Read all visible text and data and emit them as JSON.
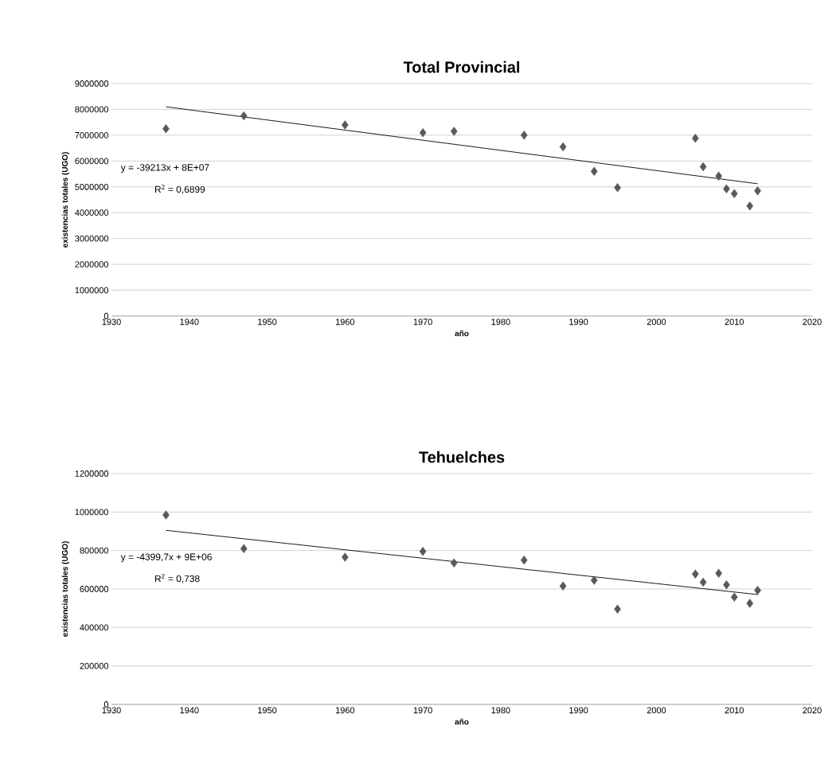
{
  "chart_data": [
    {
      "type": "scatter",
      "title": "Total Provincial",
      "xlabel": "año",
      "ylabel": "existencias totales (UGO)",
      "annotations": [
        "y = -39213x + 8E+07",
        "R$^{2}$ = 0,6899"
      ],
      "series": [
        {
          "color": "#595959",
          "marker": "diamond",
          "x": [
            1937,
            1947,
            1960,
            1970,
            1974,
            1983,
            1988,
            1992,
            1995,
            2005,
            2006,
            2008,
            2009,
            2010,
            2012,
            2013
          ],
          "values": [
            7250000,
            7750000,
            7400000,
            7100000,
            7150000,
            7000000,
            6550000,
            5600000,
            4970000,
            6880000,
            5780000,
            5420000,
            4920000,
            4740000,
            4260000,
            4850000
          ]
        },
        {
          "type": "line",
          "color": "#000000",
          "marker": "none",
          "x": [
            1937,
            2013
          ],
          "values": [
            8100000,
            5120000
          ]
        }
      ],
      "xlim": [
        1930,
        2020
      ],
      "xticks": [
        1930,
        1940,
        1950,
        1960,
        1970,
        1980,
        1990,
        2000,
        2010,
        2020
      ],
      "ylim": [
        0,
        9000000
      ],
      "yticks": [
        0,
        1000000,
        2000000,
        3000000,
        4000000,
        5000000,
        6000000,
        7000000,
        8000000,
        9000000
      ],
      "grid": "y"
    },
    {
      "type": "scatter",
      "title": "Tehuelches",
      "xlabel": "año",
      "ylabel": "existencias totales (UGO)",
      "annotations": [
        "y = -4399,7x + 9E+06",
        "R$^{2}$ = 0,738"
      ],
      "series": [
        {
          "color": "#595959",
          "marker": "diamond",
          "x": [
            1937,
            1947,
            1960,
            1970,
            1974,
            1983,
            1988,
            1992,
            1995,
            2005,
            2006,
            2008,
            2009,
            2010,
            2012,
            2013
          ],
          "values": [
            985000,
            810000,
            765000,
            795000,
            735000,
            750000,
            615000,
            645000,
            495000,
            678000,
            635000,
            682000,
            622000,
            558000,
            525000,
            593000
          ]
        },
        {
          "type": "line",
          "color": "#000000",
          "marker": "none",
          "x": [
            1937,
            2013
          ],
          "values": [
            905000,
            571000
          ]
        }
      ],
      "xlim": [
        1930,
        2020
      ],
      "xticks": [
        1930,
        1940,
        1950,
        1960,
        1970,
        1980,
        1990,
        2000,
        2010,
        2020
      ],
      "ylim": [
        0,
        1200000
      ],
      "yticks": [
        0,
        200000,
        400000,
        600000,
        800000,
        1000000,
        1200000
      ],
      "grid": "y"
    }
  ]
}
